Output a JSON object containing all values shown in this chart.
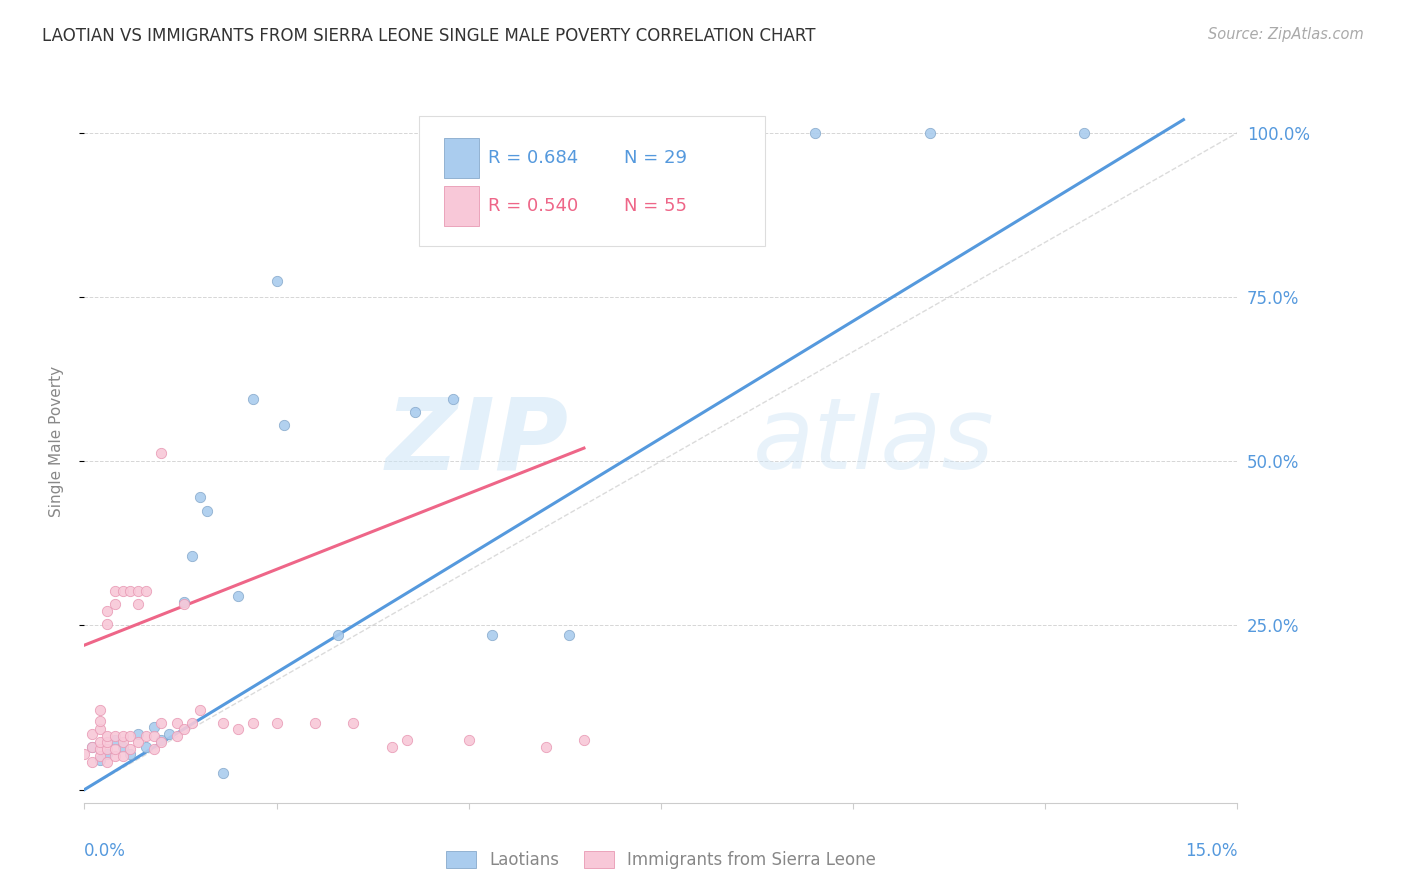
{
  "title": "LAOTIAN VS IMMIGRANTS FROM SIERRA LEONE SINGLE MALE POVERTY CORRELATION CHART",
  "source": "Source: ZipAtlas.com",
  "ylabel": "Single Male Poverty",
  "xlim": [
    0.0,
    0.15
  ],
  "ylim": [
    -0.02,
    1.08
  ],
  "watermark_zip": "ZIP",
  "watermark_atlas": "atlas",
  "legend_blue_r": "R = 0.684",
  "legend_blue_n": "N = 29",
  "legend_pink_r": "R = 0.540",
  "legend_pink_n": "N = 55",
  "label_blue": "Laotians",
  "label_pink": "Immigrants from Sierra Leone",
  "blue_scatter": [
    [
      0.001,
      0.065
    ],
    [
      0.002,
      0.045
    ],
    [
      0.003,
      0.055
    ],
    [
      0.004,
      0.075
    ],
    [
      0.005,
      0.065
    ],
    [
      0.006,
      0.055
    ],
    [
      0.007,
      0.085
    ],
    [
      0.008,
      0.065
    ],
    [
      0.009,
      0.095
    ],
    [
      0.01,
      0.075
    ],
    [
      0.011,
      0.085
    ],
    [
      0.013,
      0.285
    ],
    [
      0.014,
      0.355
    ],
    [
      0.015,
      0.445
    ],
    [
      0.016,
      0.425
    ],
    [
      0.018,
      0.025
    ],
    [
      0.02,
      0.295
    ],
    [
      0.022,
      0.595
    ],
    [
      0.025,
      0.775
    ],
    [
      0.026,
      0.555
    ],
    [
      0.033,
      0.235
    ],
    [
      0.043,
      0.575
    ],
    [
      0.048,
      0.595
    ],
    [
      0.053,
      0.235
    ],
    [
      0.063,
      0.235
    ],
    [
      0.072,
      1.0
    ],
    [
      0.095,
      1.0
    ],
    [
      0.11,
      1.0
    ],
    [
      0.13,
      1.0
    ]
  ],
  "pink_scatter": [
    [
      0.0,
      0.055
    ],
    [
      0.001,
      0.042
    ],
    [
      0.001,
      0.065
    ],
    [
      0.001,
      0.085
    ],
    [
      0.002,
      0.052
    ],
    [
      0.002,
      0.062
    ],
    [
      0.002,
      0.072
    ],
    [
      0.002,
      0.092
    ],
    [
      0.002,
      0.105
    ],
    [
      0.002,
      0.122
    ],
    [
      0.003,
      0.042
    ],
    [
      0.003,
      0.062
    ],
    [
      0.003,
      0.072
    ],
    [
      0.003,
      0.082
    ],
    [
      0.003,
      0.252
    ],
    [
      0.003,
      0.272
    ],
    [
      0.004,
      0.052
    ],
    [
      0.004,
      0.062
    ],
    [
      0.004,
      0.082
    ],
    [
      0.004,
      0.282
    ],
    [
      0.004,
      0.302
    ],
    [
      0.005,
      0.052
    ],
    [
      0.005,
      0.072
    ],
    [
      0.005,
      0.082
    ],
    [
      0.005,
      0.302
    ],
    [
      0.006,
      0.062
    ],
    [
      0.006,
      0.082
    ],
    [
      0.006,
      0.302
    ],
    [
      0.007,
      0.072
    ],
    [
      0.007,
      0.282
    ],
    [
      0.007,
      0.302
    ],
    [
      0.008,
      0.082
    ],
    [
      0.008,
      0.302
    ],
    [
      0.009,
      0.062
    ],
    [
      0.009,
      0.082
    ],
    [
      0.01,
      0.072
    ],
    [
      0.01,
      0.102
    ],
    [
      0.01,
      0.512
    ],
    [
      0.012,
      0.082
    ],
    [
      0.012,
      0.102
    ],
    [
      0.013,
      0.092
    ],
    [
      0.013,
      0.282
    ],
    [
      0.014,
      0.102
    ],
    [
      0.015,
      0.122
    ],
    [
      0.018,
      0.102
    ],
    [
      0.02,
      0.092
    ],
    [
      0.022,
      0.102
    ],
    [
      0.025,
      0.102
    ],
    [
      0.03,
      0.102
    ],
    [
      0.035,
      0.102
    ],
    [
      0.04,
      0.065
    ],
    [
      0.042,
      0.075
    ],
    [
      0.05,
      0.075
    ],
    [
      0.06,
      0.065
    ],
    [
      0.065,
      0.075
    ]
  ],
  "blue_line_x": [
    0.0,
    0.143
  ],
  "blue_line_y": [
    0.0,
    1.02
  ],
  "pink_line_x": [
    0.0,
    0.065
  ],
  "pink_line_y": [
    0.22,
    0.52
  ],
  "diag_line_x": [
    0.0,
    0.15
  ],
  "diag_line_y": [
    0.0,
    1.0
  ],
  "background_color": "#ffffff",
  "grid_color": "#cccccc",
  "blue_scatter_face": "#aaccee",
  "blue_scatter_edge": "#88aacc",
  "pink_scatter_face": "#f8c8d8",
  "pink_scatter_edge": "#e899b4",
  "blue_line_color": "#5599dd",
  "pink_line_color": "#ee6688",
  "diag_color": "#cccccc",
  "ylabel_color": "#888888",
  "title_color": "#333333",
  "source_color": "#aaaaaa",
  "tick_label_color": "#5599dd",
  "legend_blue_color": "#5599dd",
  "legend_pink_color": "#ee6688"
}
